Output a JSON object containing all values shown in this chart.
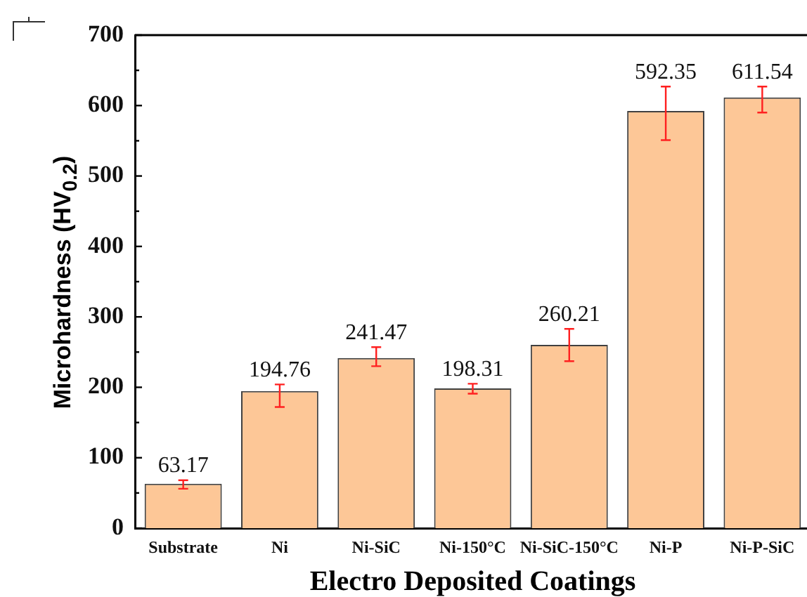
{
  "chart_data": {
    "type": "bar",
    "xlabel": "Electro Deposited Coatings",
    "ylabel": "Microhardness (HV$_{0.2}$)",
    "categories": [
      "Substrate",
      "Ni",
      "Ni-SiC",
      "Ni-150°C",
      "Ni-SiC-150°C",
      "Ni-P",
      "Ni-P-SiC"
    ],
    "values": [
      63.17,
      194.76,
      241.47,
      198.31,
      260.21,
      592.35,
      611.54
    ],
    "color": "#fdc797",
    "errors": [
      [
        56,
        68
      ],
      [
        172,
        204
      ],
      [
        230,
        257
      ],
      [
        191,
        205
      ],
      [
        237,
        283
      ],
      [
        551,
        627
      ],
      [
        590,
        627
      ]
    ],
    "ylim": [
      0,
      700
    ],
    "yticks": [
      0,
      {
        "value": 50,
        "label": null
      },
      100,
      {
        "value": 150,
        "label": null
      },
      200,
      {
        "value": 250,
        "label": null
      },
      300,
      {
        "value": 350,
        "label": null
      },
      400,
      {
        "value": 450,
        "label": null
      },
      500,
      {
        "value": 550,
        "label": null
      },
      600,
      {
        "value": 650,
        "label": null
      },
      700
    ],
    "data_labels": true,
    "grid": false,
    "legend": false
  }
}
